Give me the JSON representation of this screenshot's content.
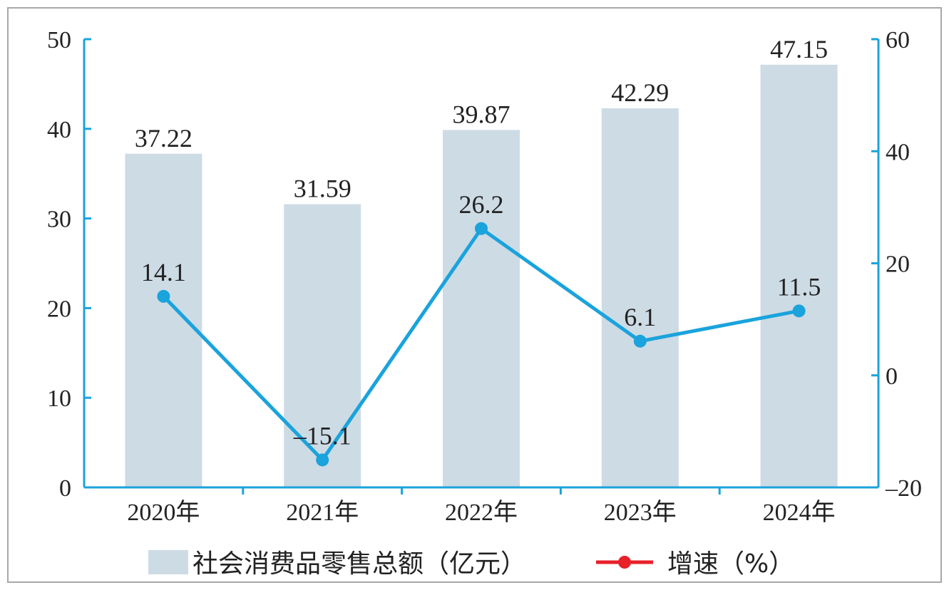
{
  "chart_data": {
    "type": "bar",
    "categories": [
      "2020年",
      "2021年",
      "2022年",
      "2023年",
      "2024年"
    ],
    "series": [
      {
        "name": "社会消费品零售总额（亿元）",
        "type": "bar",
        "axis": "left",
        "values": [
          37.22,
          31.59,
          39.87,
          42.29,
          47.15
        ],
        "labels": [
          "37.22",
          "31.59",
          "39.87",
          "42.29",
          "47.15"
        ],
        "color": "#cddbe5"
      },
      {
        "name": "增速（%）",
        "type": "line",
        "axis": "right",
        "values": [
          14.1,
          -15.1,
          26.2,
          6.1,
          11.5
        ],
        "labels": [
          "14.1",
          "–15.1",
          "26.2",
          "6.1",
          "11.5"
        ],
        "color": "#1aa3dc"
      }
    ],
    "y_left": {
      "lim": [
        0,
        50
      ],
      "ticks": [
        0,
        10,
        20,
        30,
        40,
        50
      ],
      "tick_labels": [
        "0",
        "10",
        "20",
        "30",
        "40",
        "50"
      ]
    },
    "y_right": {
      "lim": [
        -20,
        60
      ],
      "ticks": [
        -20,
        0,
        20,
        40,
        60
      ],
      "tick_labels": [
        "–20",
        "0",
        "20",
        "40",
        "60"
      ]
    },
    "legend": {
      "position": "bottom",
      "bar_label": "社会消费品零售总额（亿元）",
      "line_label": "增速（%）",
      "line_marker_color": "#e8202a"
    },
    "axis_color": "#1aa3dc",
    "grid": false
  }
}
